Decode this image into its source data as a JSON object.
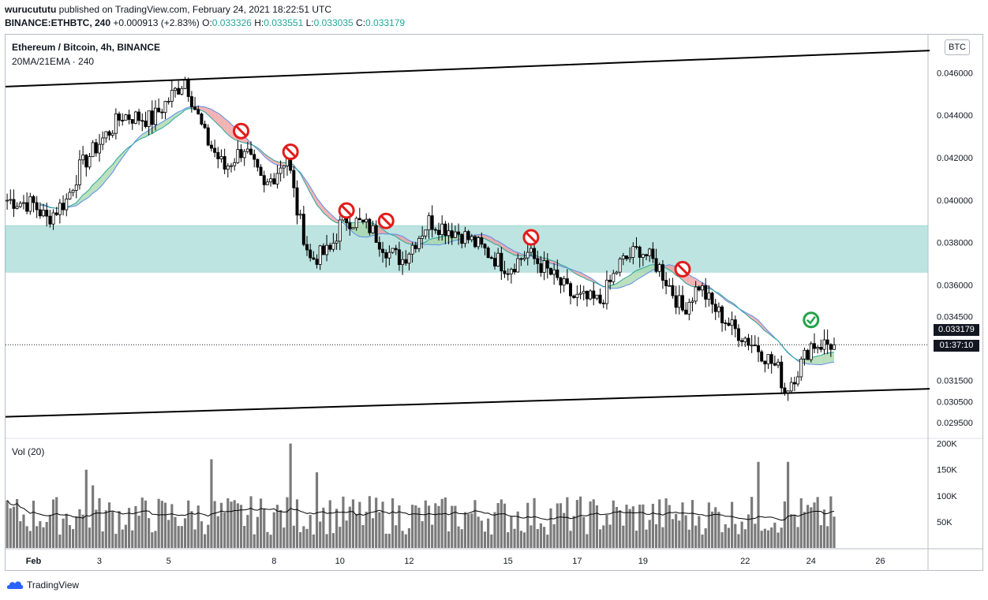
{
  "header": {
    "author": "wurucututu",
    "published_text": "published on TradingView.com, February 24, 2021 18:22:51 UTC",
    "symbol": "BINANCE:ETHBTC, 240",
    "change": "+0.000913 (+2.83%)",
    "o_label": "O:",
    "o_value": "0.033326",
    "h_label": "H:",
    "h_value": "0.033551",
    "l_label": "L:",
    "l_value": "0.033035",
    "c_label": "C:",
    "c_value": "0.033179"
  },
  "legend": {
    "title": "Ethereum / Bitcoin, 4h, BINANCE",
    "indicator": "20MA/21EMA · 240",
    "volume": "Vol (20)"
  },
  "currency_button": "BTC",
  "last_price": "0.033179",
  "countdown": "01:37:10",
  "footer_logo": "TradingView",
  "colors": {
    "up": "#ffffff",
    "down": "#000000",
    "zone": "#b2dfdb",
    "cloud_bull": "#a5d6a7",
    "cloud_bear": "#ef9a9a",
    "ma": "#5b8def",
    "ema": "#26a69a",
    "volume": "#7a7a7a",
    "vol_ma": "#000000"
  },
  "chart_data": {
    "type": "candlestick",
    "price_axis": {
      "range": [
        0.0288,
        0.0478
      ],
      "ticks": [
        "0.046000",
        "0.044000",
        "0.042000",
        "0.040000",
        "0.038000",
        "0.036000",
        "0.034500",
        "0.031500",
        "0.030500",
        "0.029500"
      ],
      "tick_values": [
        0.046,
        0.044,
        0.042,
        0.04,
        0.038,
        0.036,
        0.0345,
        0.0315,
        0.0305,
        0.0295
      ]
    },
    "x_axis": {
      "ticks": [
        "Feb",
        "3",
        "5",
        "8",
        "10",
        "12",
        "15",
        "17",
        "19",
        "22",
        "24",
        "26"
      ],
      "tick_index": [
        8,
        28,
        49,
        81,
        101,
        122,
        152,
        173,
        193,
        224,
        244,
        265
      ]
    },
    "volume_axis": {
      "range": [
        0,
        210000
      ],
      "ticks": [
        "200K",
        "150K",
        "100K",
        "50K"
      ],
      "tick_values": [
        200000,
        150000,
        100000,
        50000
      ]
    },
    "candle_count": 252,
    "anchors": [
      [
        0,
        0.04
      ],
      [
        8,
        0.0398
      ],
      [
        12,
        0.0391
      ],
      [
        18,
        0.04
      ],
      [
        22,
        0.0415
      ],
      [
        28,
        0.0427
      ],
      [
        35,
        0.044
      ],
      [
        44,
        0.0438
      ],
      [
        54,
        0.0457
      ],
      [
        60,
        0.043
      ],
      [
        66,
        0.0415
      ],
      [
        72,
        0.0425
      ],
      [
        78,
        0.0405
      ],
      [
        85,
        0.0421
      ],
      [
        88,
        0.0395
      ],
      [
        92,
        0.0372
      ],
      [
        98,
        0.0376
      ],
      [
        102,
        0.0392
      ],
      [
        110,
        0.0387
      ],
      [
        116,
        0.0375
      ],
      [
        120,
        0.0372
      ],
      [
        128,
        0.039
      ],
      [
        138,
        0.0384
      ],
      [
        146,
        0.0375
      ],
      [
        152,
        0.0368
      ],
      [
        158,
        0.0375
      ],
      [
        165,
        0.0365
      ],
      [
        172,
        0.0354
      ],
      [
        180,
        0.0352
      ],
      [
        186,
        0.037
      ],
      [
        192,
        0.0377
      ],
      [
        198,
        0.0368
      ],
      [
        205,
        0.0348
      ],
      [
        210,
        0.036
      ],
      [
        214,
        0.035
      ],
      [
        220,
        0.034
      ],
      [
        228,
        0.033
      ],
      [
        234,
        0.032
      ],
      [
        236,
        0.031
      ],
      [
        240,
        0.032
      ],
      [
        244,
        0.0332
      ],
      [
        250,
        0.0332
      ]
    ],
    "support_zone": [
      0.0366,
      0.0388
    ],
    "channel_upper": [
      [
        0,
        0.04535
      ],
      [
        280,
        0.04705
      ]
    ],
    "channel_lower": [
      [
        0,
        0.02978
      ],
      [
        280,
        0.0311
      ]
    ],
    "rejection_marks_index": [
      71,
      86,
      103,
      115,
      159,
      205
    ],
    "confirmation_mark_index": 244,
    "volume_spikes": [
      [
        24,
        150000
      ],
      [
        26,
        120000
      ],
      [
        62,
        170000
      ],
      [
        86,
        200000
      ],
      [
        94,
        145000
      ],
      [
        228,
        165000
      ],
      [
        237,
        165000
      ]
    ]
  }
}
